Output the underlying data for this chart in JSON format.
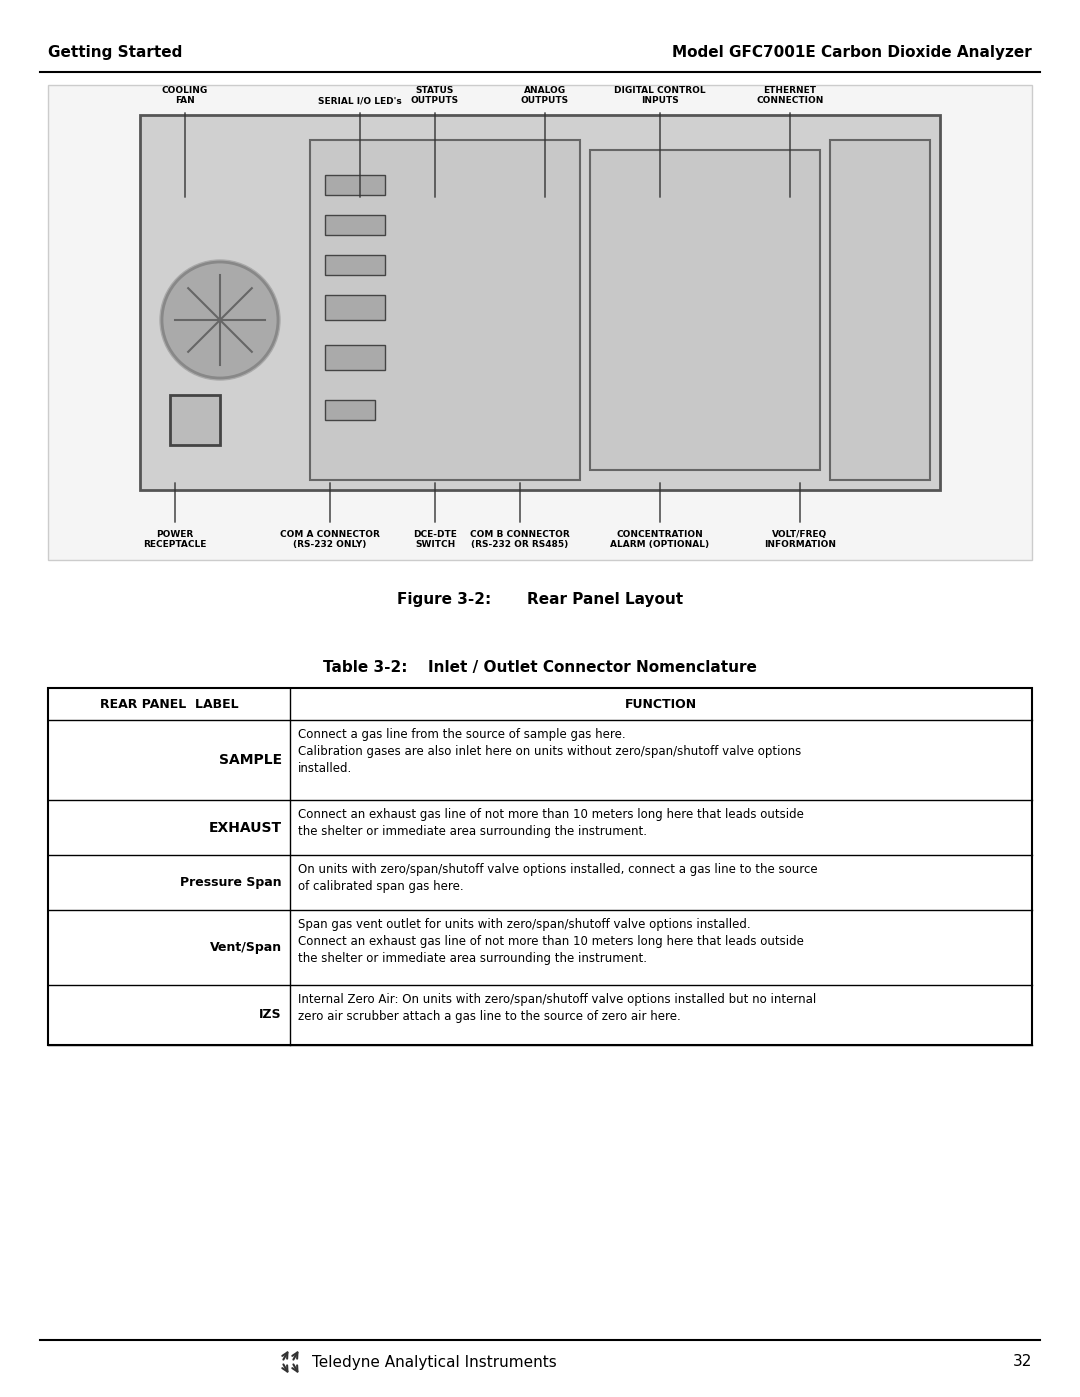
{
  "page_title_left": "Getting Started",
  "page_title_right": "Model GFC7001E Carbon Dioxide Analyzer",
  "figure_caption": "Figure 3-2:   Rear Panel Layout",
  "table_title": "Table 3-2:  Inlet / Outlet Connector Nomenclature",
  "table_header": [
    "REAR PANEL  LABEL",
    "FUNCTION"
  ],
  "table_rows": [
    {
      "label": "SAMPLE",
      "label_bold": true,
      "function": "Connect a gas line from the source of sample gas here.\nCalibration gases are also inlet here on units without zero/span/shutoff valve options\ninstalled."
    },
    {
      "label": "EXHAUST",
      "label_bold": true,
      "function": "Connect an exhaust gas line of not more than 10 meters long here that leads outside\nthe shelter or immediate area surrounding the instrument."
    },
    {
      "label": "Pressure Span",
      "label_bold": false,
      "function": "On units with zero/span/shutoff valve options installed, connect a gas line to the source\nof calibrated span gas here."
    },
    {
      "label": "Vent/Span",
      "label_bold": false,
      "function": "Span gas vent outlet for units with zero/span/shutoff valve options installed.\nConnect an exhaust gas line of not more than 10 meters long here that leads outside\nthe shelter or immediate area surrounding the instrument."
    },
    {
      "label": "IZS",
      "label_bold": false,
      "function": "Internal Zero Air: On units with zero/span/shutoff valve options installed but no internal\nzero air scrubber attach a gas line to the source of zero air here."
    }
  ],
  "footer_text": "Teledyne Analytical Instruments",
  "footer_page": "32",
  "bg_color": "#ffffff",
  "text_color": "#000000",
  "line_color": "#000000",
  "header_bg": "#ffffff",
  "table_border_color": "#000000"
}
